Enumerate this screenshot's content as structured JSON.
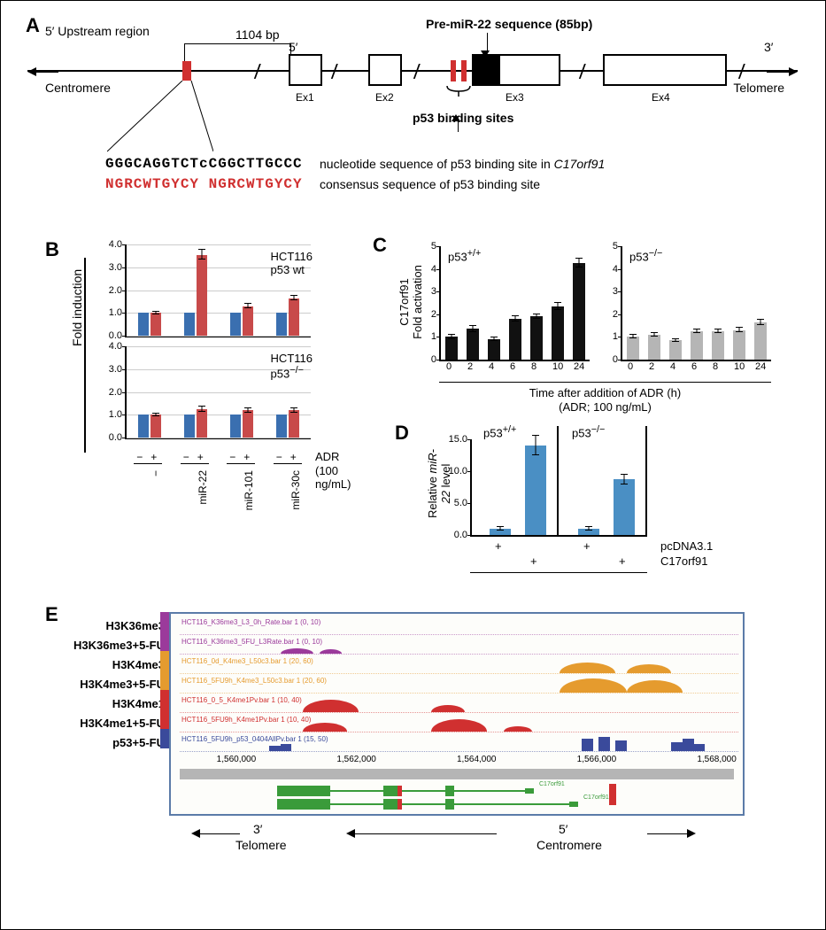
{
  "labels": {
    "A": "A",
    "B": "B",
    "C": "C",
    "D": "D",
    "E": "E"
  },
  "panelA": {
    "upstream": "5′ Upstream region",
    "bp1104": "1104 bp",
    "preMiR": "Pre-miR-22 sequence (85bp)",
    "centromere": "Centromere",
    "telomere": "Telomere",
    "ex1": "Ex1",
    "ex2": "Ex2",
    "ex3": "Ex3",
    "ex4": "Ex4",
    "five": "5′",
    "three": "3′",
    "p53sites": "p53 binding sites",
    "seq1": "GGGCAGGTCTcCGGCTTGCCC",
    "seq2": "NGRCWTGYCY NGRCWTGYCY",
    "seq1desc": "nucleotide sequence of p53 binding site in",
    "seq1gene": "C17orf91",
    "seq2desc": "consensus sequence of p53 binding site",
    "colors": {
      "red": "#d03030",
      "black": "#000000"
    }
  },
  "panelB": {
    "ylabel": "Fold induction",
    "title1": "HCT116\np53 wt",
    "title1a": "HCT116",
    "title1b": "p53 wt",
    "title2a": "HCT116",
    "title2b": "p53",
    "title2sup": "−/−",
    "adr": "ADR\n(100 ng/mL)",
    "adr1": "ADR",
    "adr2": "(100 ng/mL)",
    "ymax": 4.0,
    "yticks": [
      0.0,
      1.0,
      2.0,
      3.0,
      4.0
    ],
    "groups": [
      "−",
      "miR-22",
      "miR-101",
      "miR-30c"
    ],
    "signs": [
      "−",
      "+"
    ],
    "colors": {
      "minus": "#3a6fb0",
      "plus": "#c84a4a"
    },
    "wt": {
      "minus": [
        1.0,
        1.0,
        1.0,
        1.0
      ],
      "plus": [
        1.0,
        3.55,
        1.3,
        1.65
      ],
      "err": [
        0.05,
        0.2,
        0.08,
        0.1
      ]
    },
    "ko": {
      "minus": [
        1.0,
        1.0,
        1.0,
        1.0
      ],
      "plus": [
        1.0,
        1.25,
        1.2,
        1.2
      ],
      "err": [
        0.05,
        0.12,
        0.1,
        0.1
      ]
    }
  },
  "panelC": {
    "ylabel1": "C17orf91",
    "ylabel2": "Fold activation",
    "t1": "p53",
    "t1sup": "+/+",
    "t2": "p53",
    "t2sup": "−/−",
    "xlabel1": "Time after addition of ADR (h)",
    "xlabel2": "(ADR; 100 ng/mL)",
    "xticks": [
      "0",
      "2",
      "4",
      "6",
      "8",
      "10",
      "24"
    ],
    "ymax": 5,
    "yticks": [
      0,
      1,
      2,
      3,
      4,
      5
    ],
    "wt": [
      1.0,
      1.35,
      0.9,
      1.8,
      1.9,
      2.35,
      4.25
    ],
    "wt_err": [
      0.1,
      0.12,
      0.08,
      0.12,
      0.1,
      0.15,
      0.2
    ],
    "ko": [
      1.0,
      1.1,
      0.85,
      1.25,
      1.25,
      1.3,
      1.65
    ],
    "ko_err": [
      0.08,
      0.08,
      0.06,
      0.08,
      0.08,
      0.1,
      0.12
    ],
    "colors": {
      "wt": "#111111",
      "ko": "#b5b5b5"
    }
  },
  "panelD": {
    "ylabel1": "Relative ",
    "ylabel1i": "miR-",
    "ylabel2i": "22",
    "ylabel2": " level",
    "t1": "p53",
    "t1sup": "+/+",
    "t2": "p53",
    "t2sup": "−/−",
    "rows": [
      "pcDNA3.1",
      "C17orf91"
    ],
    "signs": [
      "+",
      "",
      "",
      "+",
      "+",
      "",
      "",
      "+"
    ],
    "ymax": 15,
    "yticks": [
      0.0,
      5.0,
      10.0,
      15.0
    ],
    "values": [
      1.0,
      14.0,
      1.0,
      8.7
    ],
    "err": [
      0.3,
      1.5,
      0.3,
      0.8
    ],
    "color": "#4a8fc4"
  },
  "panelE": {
    "tracks": [
      {
        "label": "H3K36me3",
        "color": "#9b3a9b"
      },
      {
        "label": "H3K36me3+5-FU",
        "color": "#9b3a9b"
      },
      {
        "label": "H3K4me3",
        "color": "#e59b2e"
      },
      {
        "label": "H3K4me3+5-FU",
        "color": "#e59b2e"
      },
      {
        "label": "H3K4me1",
        "color": "#d03030"
      },
      {
        "label": "H3K4me1+5-FU",
        "color": "#d03030"
      },
      {
        "label": "p53+5-FU",
        "color": "#3a4a9b"
      }
    ],
    "trackTexts": [
      "HCT116_K36me3_L3_0h_Rate.bar 1 (0, 10)",
      "HCT116_K36me3_5FU_L3Rate.bar 1 (0, 10)",
      "HCT116_0d_K4me3_L50c3.bar 1 (20, 60)",
      "HCT116_5FU9h_K4me3_L50c3.bar 1 (20, 60)",
      "HCT116_0_5_K4me1Pv.bar 1 (10, 40)",
      "HCT116_5FU9h_K4me1Pv.bar 1 (10, 40)",
      "HCT116_5FU9h_p53_0404AllPv.bar 1 (15, 50)"
    ],
    "coords": [
      "1,560,000",
      "1,562,000",
      "1,564,000",
      "1,566,000",
      "1,568,000"
    ],
    "three": "3′",
    "telomere": "Telomere",
    "five": "5′",
    "centromere": "Centromere"
  }
}
